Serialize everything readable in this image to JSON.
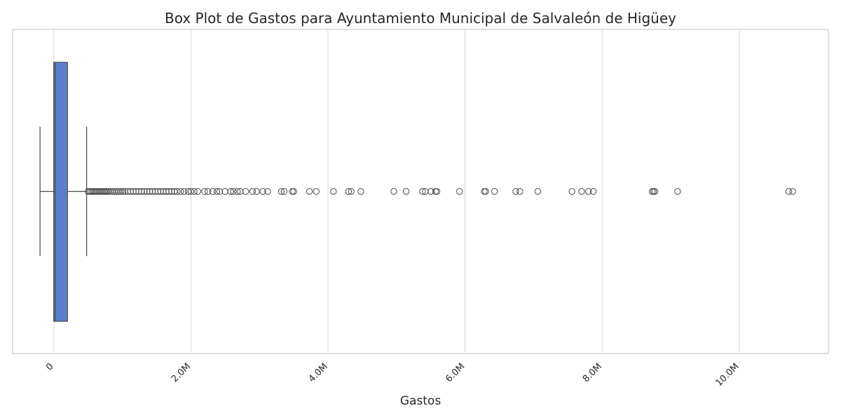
{
  "chart_data": {
    "type": "box",
    "orientation": "horizontal",
    "title": "Box Plot de Gastos para Ayuntamiento Municipal de Salvaleón de Higüey",
    "xlabel": "Gastos",
    "ylabel": "",
    "xlim": [
      -600000,
      11300000
    ],
    "xticks": [
      0,
      2000000,
      4000000,
      6000000,
      8000000,
      10000000
    ],
    "xtick_labels": [
      "0",
      "2.0M",
      "4.0M",
      "6.0M",
      "8.0M",
      "10.0M"
    ],
    "grid": "vertical",
    "box": {
      "whisker_low": -200000,
      "q1": 0,
      "median": 20000,
      "q3": 200000,
      "whisker_high": 480000
    },
    "box_color": "#5a7fcc",
    "line_color": "#4a4a4a",
    "outliers": [
      500000,
      520000,
      540000,
      560000,
      580000,
      600000,
      620000,
      640000,
      660000,
      680000,
      700000,
      720000,
      740000,
      760000,
      780000,
      800000,
      830000,
      860000,
      890000,
      920000,
      950000,
      980000,
      1010000,
      1040000,
      1080000,
      1120000,
      1160000,
      1200000,
      1240000,
      1280000,
      1320000,
      1360000,
      1400000,
      1440000,
      1480000,
      1520000,
      1560000,
      1600000,
      1640000,
      1680000,
      1720000,
      1760000,
      1800000,
      1850000,
      1900000,
      1960000,
      2000000,
      2050000,
      2100000,
      2200000,
      2250000,
      2320000,
      2380000,
      2420000,
      2500000,
      2580000,
      2620000,
      2680000,
      2720000,
      2800000,
      2900000,
      2960000,
      3050000,
      3120000,
      3320000,
      3360000,
      3480000,
      3500000,
      3730000,
      3830000,
      4080000,
      4300000,
      4340000,
      4480000,
      4960000,
      5140000,
      5380000,
      5420000,
      5500000,
      5570000,
      5590000,
      5920000,
      6280000,
      6300000,
      6430000,
      6740000,
      6800000,
      7060000,
      7560000,
      7700000,
      7800000,
      7870000,
      8730000,
      8750000,
      8770000,
      9100000,
      10720000,
      10780000
    ]
  }
}
